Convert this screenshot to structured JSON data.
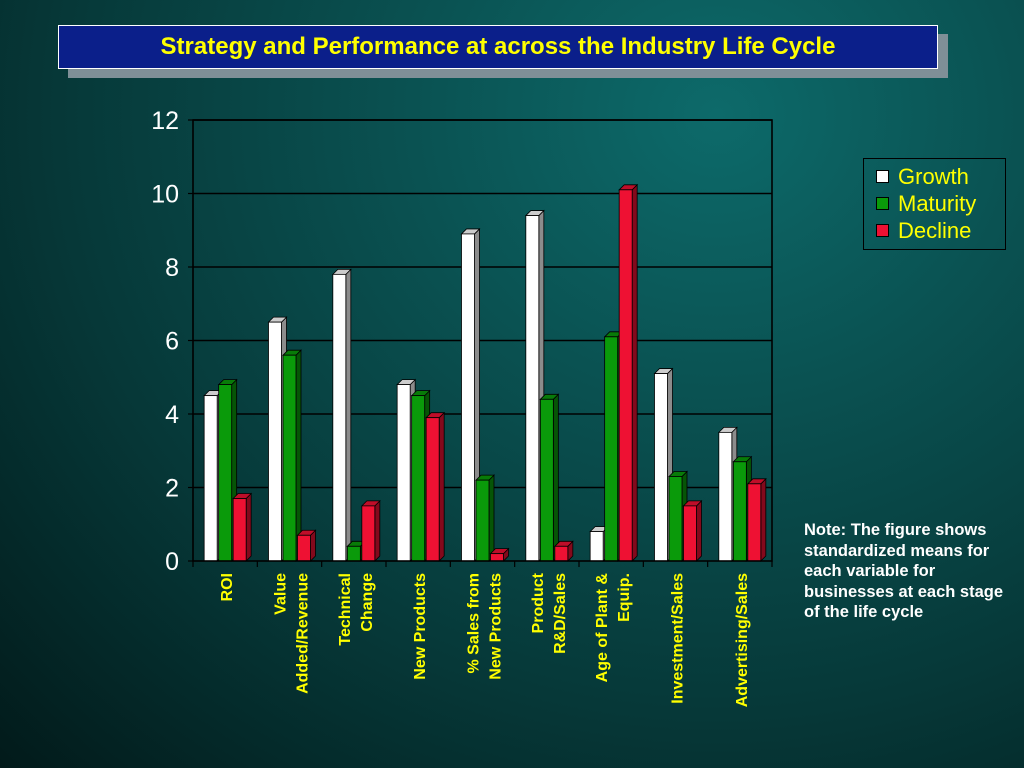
{
  "title": "Strategy and Performance at across the Industry Life Cycle",
  "note": "Note: The figure shows standardized means for each variable for businesses at each stage of the life cycle",
  "colors": {
    "Growth": "#ffffff",
    "Maturity": "#0a9a0a",
    "Decline": "#ee1133"
  },
  "chart_data": {
    "type": "bar",
    "categories": [
      [
        "ROI"
      ],
      [
        "Value",
        "Added/Revenue"
      ],
      [
        "Technical",
        "Change"
      ],
      [
        "New Products"
      ],
      [
        "% Sales from",
        "New Products"
      ],
      [
        "Product",
        "R&D/Sales"
      ],
      [
        "Age of Plant &",
        "Equip."
      ],
      [
        "Investment/Sales"
      ],
      [
        "Advertising/Sales"
      ]
    ],
    "series": [
      {
        "name": "Growth",
        "values": [
          4.5,
          6.5,
          7.8,
          4.8,
          8.9,
          9.4,
          0.8,
          5.1,
          3.5
        ]
      },
      {
        "name": "Maturity",
        "values": [
          4.8,
          5.6,
          0.4,
          4.5,
          2.2,
          4.4,
          6.1,
          2.3,
          2.7
        ]
      },
      {
        "name": "Decline",
        "values": [
          1.7,
          0.7,
          1.5,
          3.9,
          0.2,
          0.4,
          10.1,
          1.5,
          2.1
        ]
      }
    ],
    "ylim": [
      0,
      12
    ],
    "yticks": [
      "0",
      "2",
      "4",
      "6",
      "8",
      "10",
      "12"
    ],
    "grid": true,
    "legend": "right"
  }
}
